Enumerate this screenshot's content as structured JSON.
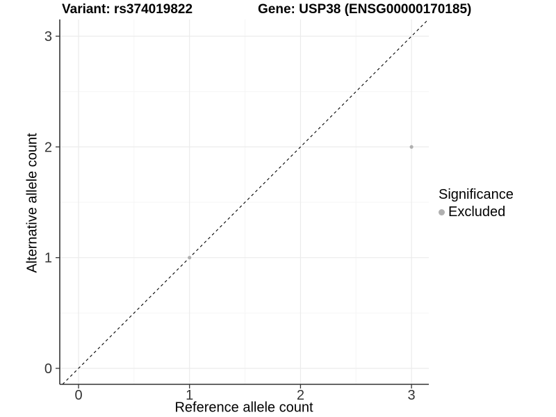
{
  "titles": {
    "variant": "Variant: rs374019822",
    "gene": "Gene: USP38 (ENSG00000170185)"
  },
  "legend": {
    "title": "Significance",
    "items": [
      {
        "label": "Excluded",
        "color": "#b0b0b0"
      }
    ]
  },
  "colors": {
    "axis_line": "#333333",
    "tick_label": "#333333",
    "grid_major": "#ebebeb",
    "grid_minor": "#f5f5f5",
    "reference_line": "#000000",
    "excluded_point": "#b0b0b0"
  },
  "chart_data": {
    "type": "scatter",
    "title_left": "Variant: rs374019822",
    "title_right": "Gene: USP38 (ENSG00000170185)",
    "xlabel": "Reference allele count",
    "ylabel": "Alternative allele count",
    "xticks": [
      0,
      1,
      2,
      3
    ],
    "yticks": [
      0,
      1,
      2,
      3
    ],
    "minor_xticks": [
      0.5,
      1.5,
      2.5
    ],
    "minor_yticks": [
      0.5,
      1.5,
      2.5
    ],
    "xlim": [
      -0.17,
      3.16
    ],
    "ylim": [
      -0.14,
      3.15
    ],
    "grid": true,
    "legend_position": "right",
    "reference_line": {
      "kind": "identity",
      "style": "dashed"
    },
    "series": [
      {
        "name": "Excluded",
        "color": "#b0b0b0",
        "points": [
          [
            1,
            1
          ],
          [
            3,
            2
          ]
        ]
      }
    ]
  }
}
